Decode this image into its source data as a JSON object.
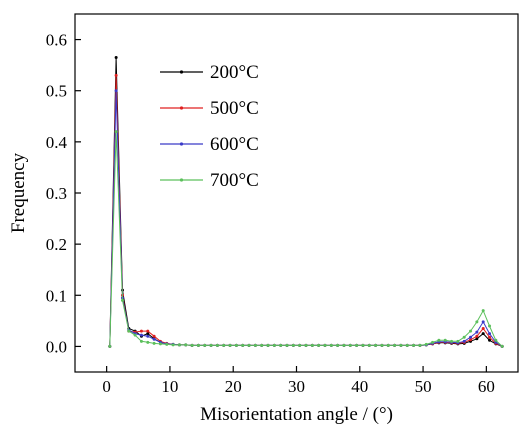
{
  "chart_data": {
    "type": "line",
    "title": "",
    "xlabel": "Misorientation angle / (°)",
    "ylabel": "Frequency",
    "xlim": [
      -5,
      65
    ],
    "ylim": [
      -0.05,
      0.65
    ],
    "xticks": [
      0,
      10,
      20,
      30,
      40,
      50,
      60
    ],
    "yticks": [
      0.0,
      0.1,
      0.2,
      0.3,
      0.4,
      0.5,
      0.6
    ],
    "xtick_labels": [
      "0",
      "10",
      "20",
      "30",
      "40",
      "50",
      "60"
    ],
    "ytick_labels": [
      "0.0",
      "0.1",
      "0.2",
      "0.3",
      "0.4",
      "0.5",
      "0.6"
    ],
    "grid": false,
    "legend_position": "top-left",
    "x": [
      0.5,
      1.5,
      2.5,
      3.5,
      4.5,
      5.5,
      6.5,
      7.5,
      8.5,
      9.5,
      10.5,
      11.5,
      12.5,
      13.5,
      14.5,
      15.5,
      16.5,
      17.5,
      18.5,
      19.5,
      20.5,
      21.5,
      22.5,
      23.5,
      24.5,
      25.5,
      26.5,
      27.5,
      28.5,
      29.5,
      30.5,
      31.5,
      32.5,
      33.5,
      34.5,
      35.5,
      36.5,
      37.5,
      38.5,
      39.5,
      40.5,
      41.5,
      42.5,
      43.5,
      44.5,
      45.5,
      46.5,
      47.5,
      48.5,
      49.5,
      50.5,
      51.5,
      52.5,
      53.5,
      54.5,
      55.5,
      56.5,
      57.5,
      58.5,
      59.5,
      60.5,
      61.5,
      62.5
    ],
    "series": [
      {
        "name": "200°C",
        "color": "#000000",
        "values": [
          0.0,
          0.565,
          0.11,
          0.035,
          0.03,
          0.02,
          0.025,
          0.015,
          0.008,
          0.005,
          0.004,
          0.003,
          0.003,
          0.002,
          0.002,
          0.002,
          0.002,
          0.002,
          0.002,
          0.002,
          0.002,
          0.002,
          0.002,
          0.002,
          0.002,
          0.002,
          0.002,
          0.002,
          0.002,
          0.002,
          0.002,
          0.002,
          0.002,
          0.002,
          0.002,
          0.002,
          0.002,
          0.002,
          0.002,
          0.002,
          0.002,
          0.002,
          0.002,
          0.002,
          0.002,
          0.002,
          0.002,
          0.002,
          0.002,
          0.002,
          0.003,
          0.005,
          0.007,
          0.007,
          0.006,
          0.005,
          0.006,
          0.01,
          0.015,
          0.025,
          0.012,
          0.005,
          0.0
        ]
      },
      {
        "name": "500°C",
        "color": "#e02020",
        "values": [
          0.0,
          0.53,
          0.1,
          0.03,
          0.028,
          0.03,
          0.03,
          0.02,
          0.01,
          0.006,
          0.004,
          0.003,
          0.003,
          0.002,
          0.002,
          0.002,
          0.002,
          0.002,
          0.002,
          0.002,
          0.002,
          0.002,
          0.002,
          0.002,
          0.002,
          0.002,
          0.002,
          0.002,
          0.002,
          0.002,
          0.002,
          0.002,
          0.002,
          0.002,
          0.002,
          0.002,
          0.002,
          0.002,
          0.002,
          0.002,
          0.002,
          0.002,
          0.002,
          0.002,
          0.002,
          0.002,
          0.002,
          0.002,
          0.002,
          0.002,
          0.003,
          0.005,
          0.008,
          0.008,
          0.007,
          0.006,
          0.008,
          0.013,
          0.02,
          0.035,
          0.018,
          0.006,
          0.0
        ]
      },
      {
        "name": "600°C",
        "color": "#3a3ac8",
        "values": [
          0.0,
          0.5,
          0.095,
          0.032,
          0.025,
          0.022,
          0.02,
          0.014,
          0.008,
          0.005,
          0.004,
          0.003,
          0.003,
          0.002,
          0.002,
          0.002,
          0.002,
          0.002,
          0.002,
          0.002,
          0.002,
          0.002,
          0.002,
          0.002,
          0.002,
          0.002,
          0.002,
          0.002,
          0.002,
          0.002,
          0.002,
          0.002,
          0.002,
          0.002,
          0.002,
          0.002,
          0.002,
          0.002,
          0.002,
          0.002,
          0.002,
          0.002,
          0.002,
          0.002,
          0.002,
          0.002,
          0.002,
          0.002,
          0.002,
          0.002,
          0.003,
          0.006,
          0.009,
          0.009,
          0.008,
          0.007,
          0.01,
          0.018,
          0.028,
          0.048,
          0.025,
          0.008,
          0.0
        ]
      },
      {
        "name": "700°C",
        "color": "#5cc05c",
        "values": [
          0.0,
          0.42,
          0.09,
          0.03,
          0.022,
          0.01,
          0.008,
          0.006,
          0.005,
          0.004,
          0.003,
          0.003,
          0.003,
          0.002,
          0.002,
          0.002,
          0.002,
          0.002,
          0.002,
          0.002,
          0.002,
          0.002,
          0.002,
          0.002,
          0.002,
          0.002,
          0.002,
          0.002,
          0.002,
          0.002,
          0.002,
          0.002,
          0.002,
          0.002,
          0.002,
          0.002,
          0.002,
          0.002,
          0.002,
          0.002,
          0.002,
          0.002,
          0.002,
          0.002,
          0.002,
          0.002,
          0.002,
          0.002,
          0.002,
          0.002,
          0.004,
          0.008,
          0.012,
          0.012,
          0.01,
          0.01,
          0.018,
          0.03,
          0.048,
          0.07,
          0.04,
          0.012,
          0.0
        ]
      }
    ]
  }
}
